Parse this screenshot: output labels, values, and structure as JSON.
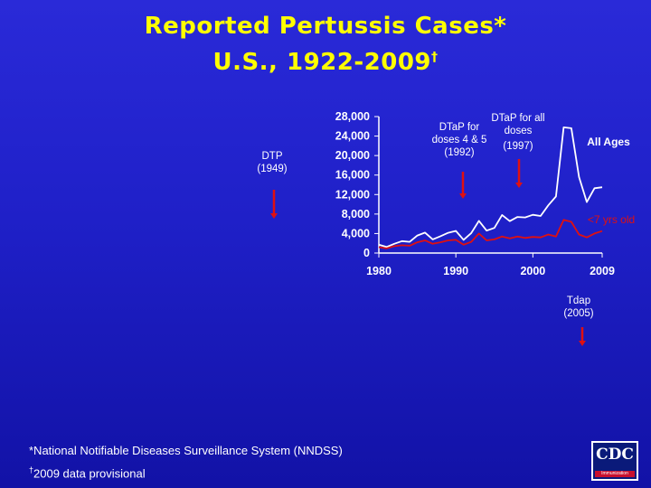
{
  "title": {
    "line1": "Reported Pertussis Cases*",
    "line2": "U.S., 1922-2009",
    "line2_mark": "†"
  },
  "annotations": {
    "dtp": [
      "DTP",
      "(1949)"
    ],
    "dtap45": [
      "DTaP for",
      "doses 4 & 5",
      "(1992)"
    ],
    "dtapall": [
      "DTaP for all",
      "doses",
      "(1997)"
    ],
    "tdap": [
      "Tdap",
      "(2005)"
    ]
  },
  "footnotes": {
    "nndss": "*National Notifiable Diseases Surveillance System (NNDSS)",
    "mark": "†",
    "provisional": "2009 data provisional"
  },
  "logo": {
    "text": "CDC",
    "strip": "Immunization"
  },
  "colors": {
    "title": "#ffff00",
    "all_ages": "#ffffff",
    "under7": "#e01010",
    "arrow": "#e01010",
    "axis_text": "#ffffff"
  },
  "chart_data": {
    "type": "line",
    "ylim": [
      0,
      28000
    ],
    "xlim": [
      1980,
      2009
    ],
    "yticks": [
      "28,000",
      "24,000",
      "20,000",
      "16,000",
      "12,000",
      "8,000",
      "4,000",
      "0"
    ],
    "ytick_values": [
      28000,
      24000,
      20000,
      16000,
      12000,
      8000,
      4000,
      0
    ],
    "xticks": [
      "1980",
      "1990",
      "2000",
      "2009"
    ],
    "xtick_values": [
      1980,
      1990,
      2000,
      2009
    ],
    "x": [
      1980,
      1981,
      1982,
      1983,
      1984,
      1985,
      1986,
      1987,
      1988,
      1989,
      1990,
      1991,
      1992,
      1993,
      1994,
      1995,
      1996,
      1997,
      1998,
      1999,
      2000,
      2001,
      2002,
      2003,
      2004,
      2005,
      2006,
      2007,
      2008,
      2009
    ],
    "series": [
      {
        "name": "All Ages",
        "values": [
          1700,
          1250,
          1900,
          2450,
          2300,
          3600,
          4200,
          2800,
          3450,
          4150,
          4550,
          2700,
          4100,
          6600,
          4600,
          5150,
          7800,
          6550,
          7400,
          7300,
          7850,
          7600,
          9800,
          11600,
          25800,
          25600,
          15600,
          10450,
          13300,
          13500
        ]
      },
      {
        "name": "<7 yrs old",
        "values": [
          1200,
          950,
          1400,
          1600,
          1500,
          2200,
          2600,
          1900,
          2200,
          2600,
          2700,
          1700,
          2300,
          4000,
          2600,
          2800,
          3400,
          3000,
          3400,
          3100,
          3300,
          3200,
          3800,
          3400,
          6800,
          6400,
          3800,
          3200,
          4000,
          4500
        ]
      }
    ]
  }
}
